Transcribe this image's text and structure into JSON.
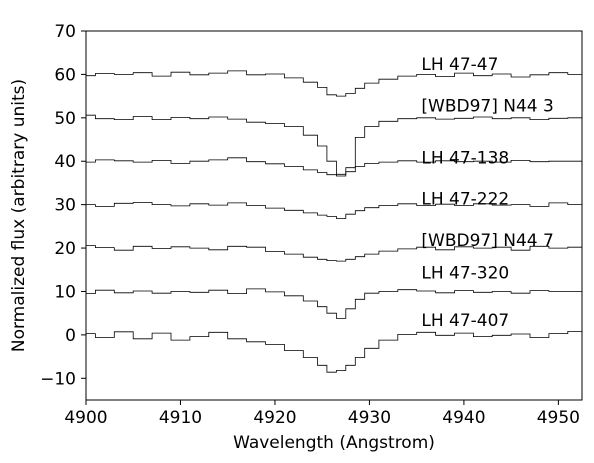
{
  "chart_data": {
    "type": "line",
    "step": true,
    "xlabel": "Wavelength (Angstrom)",
    "ylabel": "Normalized flux (arbitrary units)",
    "xlim": [
      4900,
      4952.5
    ],
    "ylim": [
      -15,
      70
    ],
    "xticks": [
      4900,
      4910,
      4920,
      4930,
      4940,
      4950
    ],
    "yticks": [
      -10,
      0,
      10,
      20,
      30,
      40,
      50,
      60,
      70
    ],
    "grid": false,
    "legend": "none",
    "line_color": "#000000",
    "series": [
      {
        "name": "LH 47-47",
        "label_x": 4935.5,
        "label_y": 61,
        "x": [
          4900,
          4902,
          4904,
          4906,
          4908,
          4910,
          4912,
          4914,
          4916,
          4918,
          4920,
          4922,
          4924,
          4925,
          4926,
          4927,
          4928,
          4929,
          4930,
          4932,
          4934,
          4936,
          4938,
          4940,
          4942,
          4944,
          4946,
          4948,
          4950,
          4952
        ],
        "y": [
          59.7,
          60.2,
          60.0,
          60.4,
          59.6,
          60.5,
          59.9,
          60.3,
          60.8,
          59.9,
          60.1,
          59.2,
          58.2,
          57.0,
          55.3,
          55.0,
          55.6,
          56.8,
          58.0,
          58.9,
          59.6,
          60.0,
          59.5,
          60.3,
          59.7,
          60.1,
          59.4,
          59.9,
          60.4,
          60.0
        ]
      },
      {
        "name": "[WBD97] N44 3",
        "label_x": 4935.5,
        "label_y": 51.5,
        "x": [
          4900,
          4902,
          4904,
          4906,
          4908,
          4910,
          4912,
          4914,
          4916,
          4918,
          4920,
          4922,
          4924,
          4925,
          4926,
          4927,
          4928,
          4929,
          4930,
          4932,
          4934,
          4936,
          4938,
          4940,
          4942,
          4944,
          4946,
          4948,
          4950,
          4952
        ],
        "y": [
          50.6,
          49.8,
          49.6,
          50.3,
          49.6,
          50.1,
          49.8,
          50.2,
          49.7,
          49.0,
          48.7,
          48.0,
          46.0,
          43.5,
          40.0,
          37.0,
          38.5,
          45.5,
          48.0,
          49.2,
          49.8,
          50.0,
          49.7,
          49.9,
          50.2,
          49.8,
          50.0,
          49.6,
          49.9,
          50.0
        ]
      },
      {
        "name": "LH 47-138",
        "label_x": 4935.5,
        "label_y": 39.5,
        "x": [
          4900,
          4902,
          4904,
          4906,
          4908,
          4910,
          4912,
          4914,
          4916,
          4918,
          4920,
          4922,
          4924,
          4925,
          4926,
          4927,
          4928,
          4929,
          4930,
          4932,
          4934,
          4936,
          4938,
          4940,
          4942,
          4944,
          4946,
          4948,
          4950,
          4952
        ],
        "y": [
          39.8,
          40.3,
          40.1,
          39.8,
          40.2,
          39.5,
          40.0,
          40.3,
          40.8,
          39.9,
          39.4,
          38.8,
          38.0,
          37.4,
          36.9,
          36.6,
          37.6,
          38.8,
          39.5,
          39.8,
          40.1,
          39.8,
          40.1,
          39.9,
          40.0,
          39.8,
          40.2,
          39.9,
          40.0,
          40.0
        ]
      },
      {
        "name": "LH 47-222",
        "label_x": 4935.5,
        "label_y": 30,
        "x": [
          4900,
          4902,
          4904,
          4906,
          4908,
          4910,
          4912,
          4914,
          4916,
          4918,
          4920,
          4922,
          4924,
          4925,
          4926,
          4927,
          4928,
          4929,
          4930,
          4932,
          4934,
          4936,
          4938,
          4940,
          4942,
          4944,
          4946,
          4948,
          4950,
          4952
        ],
        "y": [
          30.0,
          29.6,
          30.3,
          30.5,
          30.0,
          29.7,
          30.2,
          29.9,
          30.4,
          29.8,
          29.2,
          28.7,
          28.1,
          27.6,
          27.3,
          26.8,
          27.8,
          28.6,
          29.3,
          29.8,
          30.2,
          29.8,
          30.1,
          29.8,
          30.2,
          29.9,
          30.0,
          29.6,
          30.4,
          30.0
        ]
      },
      {
        "name": "[WBD97] N44 7",
        "label_x": 4935.5,
        "label_y": 20.5,
        "x": [
          4900,
          4902,
          4904,
          4906,
          4908,
          4910,
          4912,
          4914,
          4916,
          4918,
          4920,
          4922,
          4924,
          4925,
          4926,
          4927,
          4928,
          4929,
          4930,
          4932,
          4934,
          4936,
          4938,
          4940,
          4942,
          4944,
          4946,
          4948,
          4950,
          4952
        ],
        "y": [
          20.6,
          20.1,
          19.5,
          20.4,
          19.9,
          20.3,
          20.0,
          19.6,
          20.4,
          20.2,
          19.2,
          18.6,
          17.9,
          17.4,
          17.1,
          17.0,
          17.4,
          18.0,
          18.6,
          19.3,
          19.8,
          20.2,
          19.6,
          20.3,
          20.0,
          20.2,
          19.5,
          20.4,
          20.0,
          20.2
        ]
      },
      {
        "name": "LH 47-320",
        "label_x": 4935.5,
        "label_y": 13,
        "x": [
          4900,
          4902,
          4904,
          4906,
          4908,
          4910,
          4912,
          4914,
          4916,
          4918,
          4920,
          4922,
          4924,
          4925,
          4926,
          4927,
          4928,
          4929,
          4930,
          4932,
          4934,
          4936,
          4938,
          4940,
          4942,
          4944,
          4946,
          4948,
          4950,
          4952
        ],
        "y": [
          9.5,
          10.3,
          9.7,
          10.1,
          9.6,
          10.0,
          9.8,
          10.3,
          9.5,
          10.6,
          9.9,
          9.0,
          7.8,
          6.5,
          5.0,
          3.8,
          6.0,
          8.2,
          9.6,
          10.0,
          10.4,
          10.1,
          9.7,
          10.2,
          9.8,
          10.0,
          9.6,
          10.2,
          10.0,
          10.0
        ]
      },
      {
        "name": "LH 47-407",
        "label_x": 4935.5,
        "label_y": 2,
        "x": [
          4900,
          4902,
          4904,
          4906,
          4908,
          4910,
          4912,
          4914,
          4916,
          4918,
          4920,
          4922,
          4924,
          4925,
          4926,
          4927,
          4928,
          4929,
          4930,
          4932,
          4934,
          4936,
          4938,
          4940,
          4942,
          4944,
          4946,
          4948,
          4950,
          4952
        ],
        "y": [
          0.3,
          -0.6,
          0.7,
          -0.9,
          0.4,
          -1.2,
          -0.4,
          0.6,
          -0.9,
          -1.6,
          -2.2,
          -3.6,
          -5.2,
          -7.0,
          -8.6,
          -8.2,
          -7.0,
          -5.2,
          -3.1,
          -1.2,
          0.1,
          0.6,
          -0.1,
          0.4,
          -0.4,
          -0.1,
          0.2,
          -0.6,
          0.3,
          0.8
        ]
      }
    ]
  }
}
